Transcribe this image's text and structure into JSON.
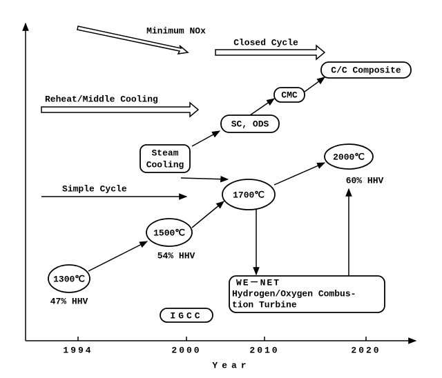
{
  "x_axis": {
    "label": "Year",
    "ticks": [
      "1994",
      "2000",
      "2010",
      "2020"
    ]
  },
  "trends": {
    "minimum_nox": "Minimum NOx",
    "closed_cycle": "Closed Cycle",
    "reheat": "Reheat/Middle Cooling",
    "simple_cycle": "Simple Cycle"
  },
  "materials": {
    "cc_composite": "C/C Composite",
    "cmc": "CMC",
    "sc_ods": "SC, ODS",
    "steam_cooling": [
      "Steam",
      "Cooling"
    ]
  },
  "temperatures": [
    {
      "label": "1300℃",
      "efficiency": "47% HHV"
    },
    {
      "label": "1500℃",
      "efficiency": "54% HHV"
    },
    {
      "label": "1700℃"
    },
    {
      "label": "2000℃",
      "efficiency": "60% HHV"
    }
  ],
  "we_net": [
    "WE－NET",
    "Hydrogen/Oxygen Combus-",
    "tion Turbine"
  ],
  "igcc": "IGCC"
}
